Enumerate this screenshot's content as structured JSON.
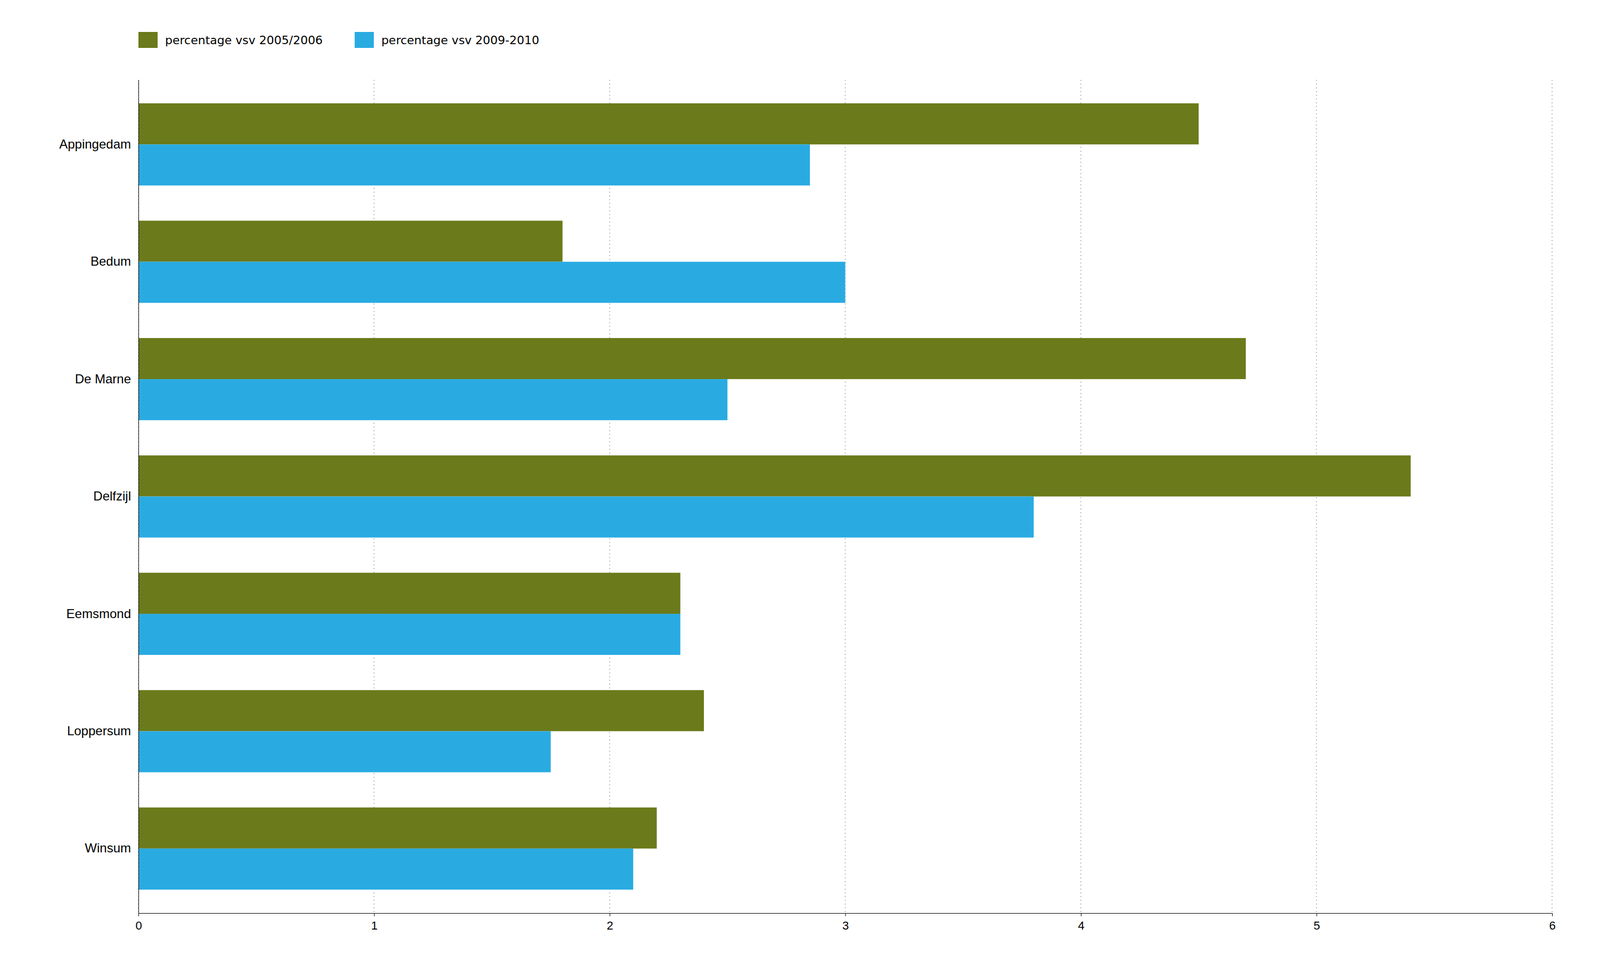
{
  "chart_data": {
    "type": "bar",
    "orientation": "horizontal",
    "categories": [
      "Appingedam",
      "Bedum",
      "De Marne",
      "Delfzijl",
      "Eemsmond",
      "Loppersum",
      "Winsum"
    ],
    "series": [
      {
        "name": "percentage vsv 2005/2006",
        "color": "#6b7a1a",
        "values": [
          4.5,
          1.8,
          4.7,
          5.4,
          2.3,
          2.4,
          2.2
        ]
      },
      {
        "name": "percentage vsv 2009-2010",
        "color": "#29abe2",
        "values": [
          2.85,
          3.0,
          2.5,
          3.8,
          2.3,
          1.75,
          2.1
        ]
      }
    ],
    "xlim": [
      0,
      6
    ],
    "xticks": [
      0,
      1,
      2,
      3,
      4,
      5,
      6
    ],
    "grid": true,
    "legend": "upper left"
  }
}
